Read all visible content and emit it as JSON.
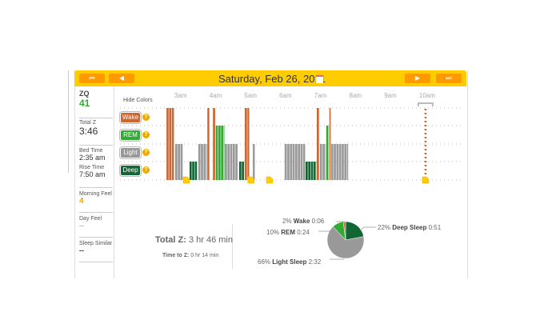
{
  "header": {
    "date": "Saturday, Feb 26, 2011",
    "first_label": "⏮",
    "prev_label": "◀",
    "next_label": "▶",
    "last_label": "⏭"
  },
  "sidebar": {
    "zq_label": "ZQ",
    "zq_value": "41",
    "total_z_label": "Total Z",
    "total_z_value": "3:46",
    "bed_time_label": "Bed Time",
    "bed_time_value": "2:35 am",
    "rise_time_label": "Rise Time",
    "rise_time_value": "7:50 am",
    "morning_feel_label": "Morning Feel",
    "morning_feel_value": "4",
    "day_feel_label": "Day Feel",
    "day_feel_value": "--",
    "sleep_similar_label": "Sleep Similar",
    "sleep_similar_value": "--"
  },
  "legend": {
    "hide_colors": "Hide Colors",
    "wake": "Wake",
    "rem": "REM",
    "light": "Light",
    "deep": "Deep",
    "help": "?"
  },
  "colors": {
    "wake": "#cc6633",
    "rem": "#33aa33",
    "light": "#999999",
    "deep": "#116633",
    "accent": "#ffcc00",
    "button": "#ff9900",
    "marker": "#ffcc00"
  },
  "chart_data": {
    "type": "bar",
    "hours": [
      "3am",
      "4am",
      "5am",
      "6am",
      "7am",
      "8am",
      "9am",
      "10am"
    ],
    "segments": [
      {
        "stage": "wake",
        "start": 2.59,
        "end": 2.82
      },
      {
        "stage": "light",
        "start": 2.84,
        "end": 3.07
      },
      {
        "stage": "deep",
        "start": 3.25,
        "end": 3.48
      },
      {
        "stage": "light",
        "start": 3.5,
        "end": 3.76
      },
      {
        "stage": "wake",
        "start": 3.76,
        "end": 3.83
      },
      {
        "stage": "wake",
        "start": 3.92,
        "end": 4.0
      },
      {
        "stage": "rem",
        "start": 4.0,
        "end": 4.26
      },
      {
        "stage": "light",
        "start": 4.26,
        "end": 4.65
      },
      {
        "stage": "deep",
        "start": 4.67,
        "end": 4.83
      },
      {
        "stage": "wake",
        "start": 4.83,
        "end": 4.97
      },
      {
        "stage": "light",
        "start": 5.06,
        "end": 5.13
      },
      {
        "stage": "light",
        "start": 5.97,
        "end": 6.57
      },
      {
        "stage": "deep",
        "start": 6.57,
        "end": 6.89
      },
      {
        "stage": "wake",
        "start": 6.89,
        "end": 6.98
      },
      {
        "stage": "light",
        "start": 6.98,
        "end": 7.16
      },
      {
        "stage": "rem",
        "start": 7.16,
        "end": 7.25
      },
      {
        "stage": "wake",
        "start": 7.25,
        "end": 7.3
      },
      {
        "stage": "light",
        "start": 7.3,
        "end": 7.8
      }
    ],
    "markers": [
      3.16,
      5.01,
      5.54,
      10.0
    ],
    "now_line": 10.0
  },
  "summary": {
    "total_z_label": "Total Z:",
    "total_z_value": "3 hr 46 min",
    "time_to_z_label": "Time to Z:",
    "time_to_z_value": "0 hr 14 min"
  },
  "pie": {
    "slices": [
      {
        "stage": "deep",
        "pct": 22,
        "pct_label": "22%",
        "name": "Deep Sleep",
        "time": "0:51"
      },
      {
        "stage": "light",
        "pct": 66,
        "pct_label": "66%",
        "name": "Light Sleep",
        "time": "2:32"
      },
      {
        "stage": "rem",
        "pct": 10,
        "pct_label": "10%",
        "name": "REM",
        "time": "0:24"
      },
      {
        "stage": "wake",
        "pct": 2,
        "pct_label": "2%",
        "name": "Wake",
        "time": "0:06"
      }
    ]
  }
}
